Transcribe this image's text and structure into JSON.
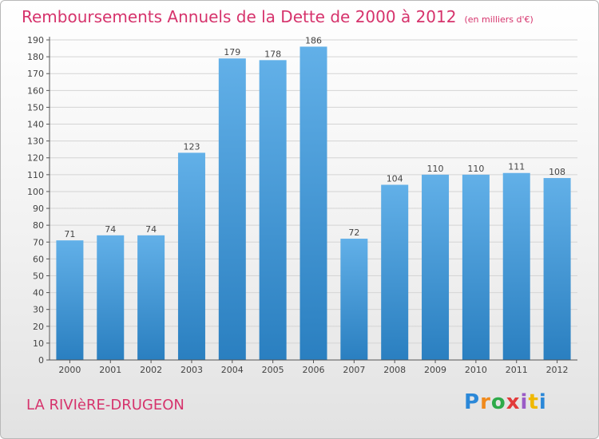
{
  "header": {
    "title": "Remboursements Annuels de la Dette de 2000 à 2012",
    "subtitle": "(en milliers d'€)"
  },
  "footer": {
    "town": "LA RIVIèRE-DRUGEON",
    "logo": "Proxiti"
  },
  "colors": {
    "accent": "#d6336c",
    "bar_top": "#62b0e8",
    "bar_bottom": "#2a7fc0"
  },
  "chart_data": {
    "type": "bar",
    "categories": [
      "2000",
      "2001",
      "2002",
      "2003",
      "2004",
      "2005",
      "2006",
      "2007",
      "2008",
      "2009",
      "2010",
      "2011",
      "2012"
    ],
    "values": [
      71,
      74,
      74,
      123,
      179,
      178,
      186,
      72,
      104,
      110,
      110,
      111,
      108
    ],
    "title": "Remboursements Annuels de la Dette de 2000 à 2012",
    "xlabel": "",
    "ylabel": "",
    "ylim": [
      0,
      190
    ],
    "yticks": [
      0,
      10,
      20,
      30,
      40,
      50,
      60,
      70,
      80,
      90,
      100,
      110,
      120,
      130,
      140,
      150,
      160,
      170,
      180,
      190
    ],
    "grid": true,
    "data_labels": true
  }
}
